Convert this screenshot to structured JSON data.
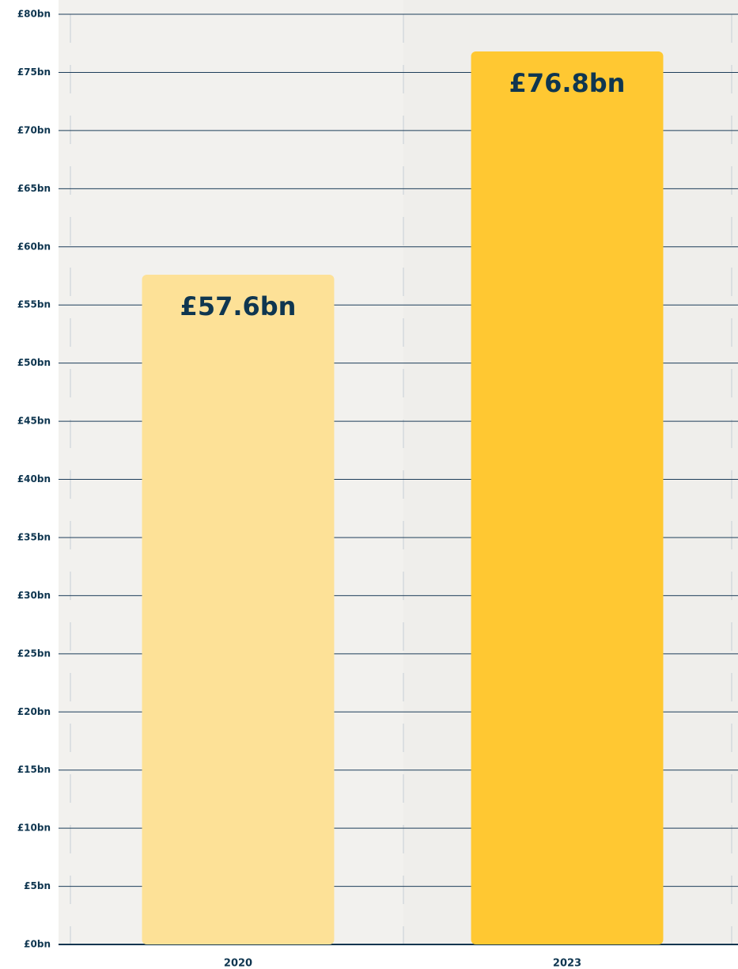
{
  "chart_data": {
    "type": "bar",
    "categories": [
      "2020",
      "2023"
    ],
    "values": [
      57.6,
      76.8
    ],
    "value_labels": [
      "£57.6bn",
      "£76.8bn"
    ],
    "colors": [
      "#fde197",
      "#ffc832"
    ],
    "ylim": [
      0,
      80
    ],
    "yticks": [
      {
        "value": 0,
        "label": "£0bn"
      },
      {
        "value": 5,
        "label": "£5bn"
      },
      {
        "value": 10,
        "label": "£10bn"
      },
      {
        "value": 15,
        "label": "£15bn"
      },
      {
        "value": 20,
        "label": "£20bn"
      },
      {
        "value": 25,
        "label": "£25bn"
      },
      {
        "value": 30,
        "label": "£30bn"
      },
      {
        "value": 35,
        "label": "£35bn"
      },
      {
        "value": 40,
        "label": "£40bn"
      },
      {
        "value": 45,
        "label": "£45bn"
      },
      {
        "value": 50,
        "label": "£50bn"
      },
      {
        "value": 55,
        "label": "£55bn"
      },
      {
        "value": 60,
        "label": "£60bn"
      },
      {
        "value": 65,
        "label": "£65bn"
      },
      {
        "value": 70,
        "label": "£70bn"
      },
      {
        "value": 75,
        "label": "£75bn"
      },
      {
        "value": 80,
        "label": "£80bn"
      }
    ],
    "grid": true
  }
}
